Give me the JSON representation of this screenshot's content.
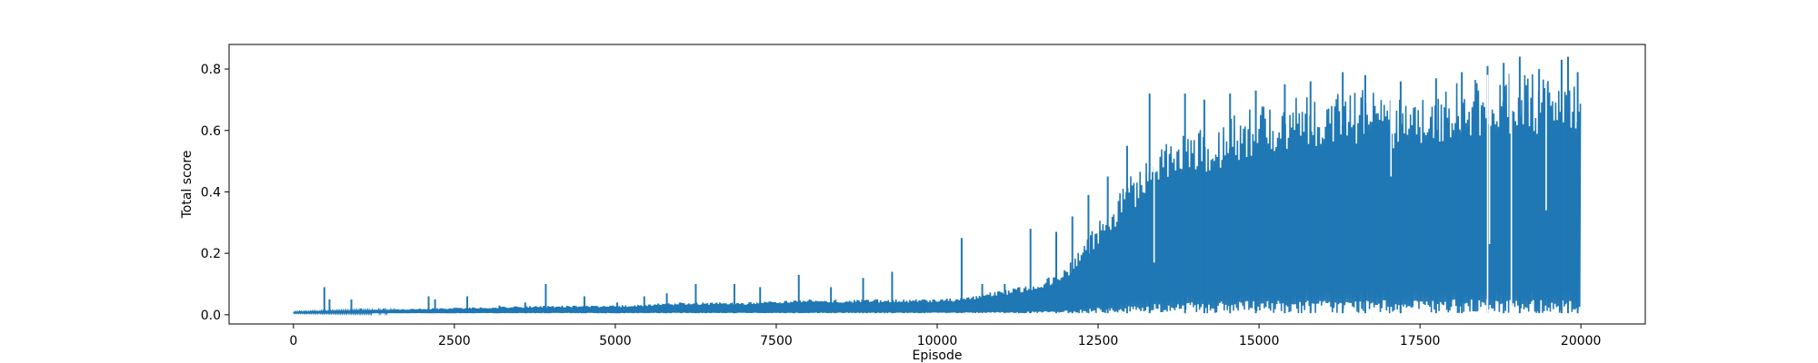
{
  "chart_data": {
    "type": "line",
    "title": "",
    "xlabel": "Episode",
    "ylabel": "Total score",
    "xlim": [
      -1000,
      21000
    ],
    "ylim": [
      -0.03,
      0.88
    ],
    "xticks": [
      0,
      2500,
      5000,
      7500,
      10000,
      12500,
      15000,
      17500,
      20000
    ],
    "yticks": [
      0.0,
      0.2,
      0.4,
      0.6,
      0.8
    ],
    "grid": false,
    "legend": "none",
    "series_color": "#1f77b4",
    "n_episodes": 20000,
    "envelope": {
      "x": [
        0,
        1000,
        2000,
        3000,
        4000,
        5000,
        6000,
        7000,
        8000,
        9000,
        10000,
        10500,
        11000,
        11500,
        12000,
        12500,
        13000,
        13500,
        14000,
        14500,
        15000,
        15500,
        16000,
        16500,
        17000,
        17500,
        18000,
        18500,
        19000,
        19500,
        20000
      ],
      "upper": [
        0.01,
        0.015,
        0.02,
        0.025,
        0.03,
        0.03,
        0.04,
        0.04,
        0.05,
        0.05,
        0.05,
        0.06,
        0.08,
        0.1,
        0.15,
        0.3,
        0.45,
        0.55,
        0.6,
        0.64,
        0.68,
        0.71,
        0.73,
        0.74,
        0.72,
        0.7,
        0.75,
        0.78,
        0.79,
        0.78,
        0.76
      ],
      "lower": [
        0.005,
        0.005,
        0.005,
        0.005,
        0.005,
        0.005,
        0.005,
        0.005,
        0.005,
        0.005,
        0.005,
        0.005,
        0.005,
        0.005,
        0.005,
        0.005,
        0.005,
        0.005,
        0.005,
        0.005,
        0.005,
        0.005,
        0.005,
        0.005,
        0.005,
        0.005,
        0.005,
        0.005,
        0.005,
        0.005,
        0.005
      ]
    },
    "spikes": [
      {
        "x": 480,
        "y": 0.09
      },
      {
        "x": 560,
        "y": 0.05
      },
      {
        "x": 900,
        "y": 0.05
      },
      {
        "x": 1050,
        "y": 0.02
      },
      {
        "x": 1400,
        "y": 0.02
      },
      {
        "x": 2100,
        "y": 0.06
      },
      {
        "x": 2200,
        "y": 0.05
      },
      {
        "x": 2700,
        "y": 0.06
      },
      {
        "x": 3200,
        "y": 0.03
      },
      {
        "x": 3600,
        "y": 0.04
      },
      {
        "x": 3920,
        "y": 0.1
      },
      {
        "x": 4520,
        "y": 0.06
      },
      {
        "x": 5030,
        "y": 0.04
      },
      {
        "x": 5450,
        "y": 0.06
      },
      {
        "x": 5800,
        "y": 0.07
      },
      {
        "x": 6250,
        "y": 0.1
      },
      {
        "x": 6850,
        "y": 0.1
      },
      {
        "x": 7250,
        "y": 0.09
      },
      {
        "x": 7850,
        "y": 0.13
      },
      {
        "x": 8350,
        "y": 0.09
      },
      {
        "x": 8850,
        "y": 0.12
      },
      {
        "x": 9300,
        "y": 0.14
      },
      {
        "x": 9800,
        "y": 0.05
      },
      {
        "x": 10380,
        "y": 0.25
      },
      {
        "x": 10700,
        "y": 0.1
      },
      {
        "x": 11050,
        "y": 0.1
      },
      {
        "x": 11450,
        "y": 0.28
      },
      {
        "x": 11850,
        "y": 0.27
      },
      {
        "x": 12100,
        "y": 0.32
      },
      {
        "x": 12350,
        "y": 0.39
      },
      {
        "x": 12650,
        "y": 0.45
      },
      {
        "x": 12950,
        "y": 0.55
      },
      {
        "x": 13300,
        "y": 0.72
      },
      {
        "x": 13850,
        "y": 0.72
      },
      {
        "x": 14150,
        "y": 0.7
      },
      {
        "x": 14550,
        "y": 0.72
      },
      {
        "x": 14950,
        "y": 0.73
      },
      {
        "x": 15400,
        "y": 0.75
      },
      {
        "x": 15800,
        "y": 0.76
      },
      {
        "x": 16300,
        "y": 0.79
      },
      {
        "x": 16650,
        "y": 0.78
      },
      {
        "x": 17200,
        "y": 0.76
      },
      {
        "x": 17750,
        "y": 0.77
      },
      {
        "x": 18150,
        "y": 0.79
      },
      {
        "x": 18550,
        "y": 0.81
      },
      {
        "x": 18800,
        "y": 0.82
      },
      {
        "x": 19050,
        "y": 0.84
      },
      {
        "x": 19350,
        "y": 0.8
      },
      {
        "x": 19700,
        "y": 0.83
      },
      {
        "x": 19800,
        "y": 0.84
      },
      {
        "x": 19950,
        "y": 0.79
      }
    ],
    "dips": [
      {
        "x": 13370,
        "y": 0.17
      },
      {
        "x": 17050,
        "y": 0.45
      },
      {
        "x": 18550,
        "y": 0.0
      },
      {
        "x": 18580,
        "y": 0.23
      },
      {
        "x": 18920,
        "y": 0.0
      },
      {
        "x": 18900,
        "y": 0.59
      },
      {
        "x": 19460,
        "y": 0.34
      }
    ]
  }
}
